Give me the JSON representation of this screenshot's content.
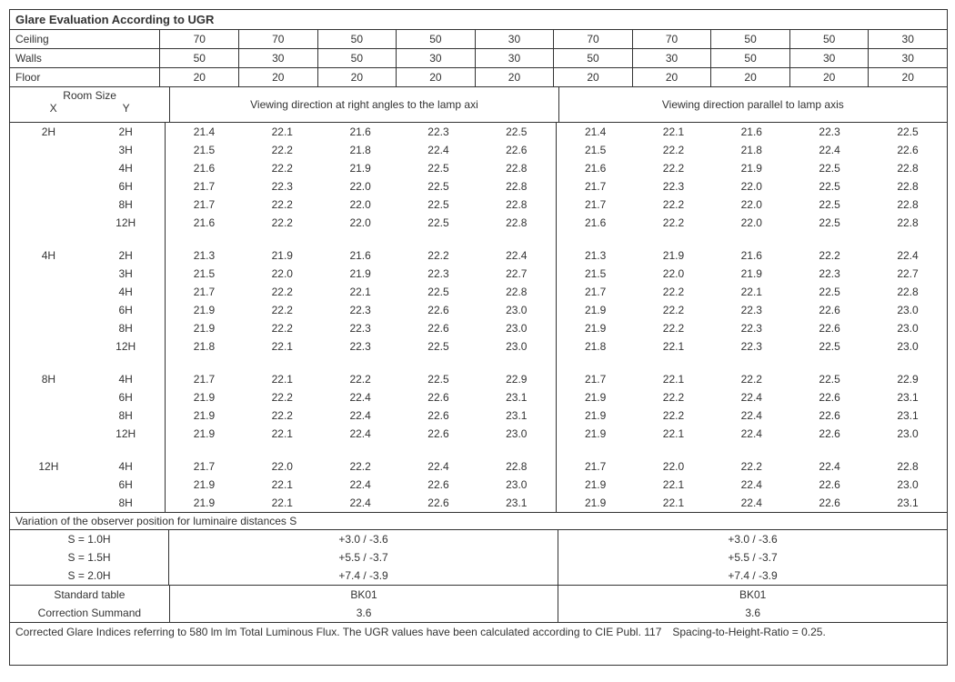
{
  "title": "Glare Evaluation According to UGR",
  "header_rows": [
    {
      "label": "Ceiling",
      "vals": [
        "70",
        "70",
        "50",
        "50",
        "30",
        "70",
        "70",
        "50",
        "50",
        "30"
      ]
    },
    {
      "label": "Walls",
      "vals": [
        "50",
        "30",
        "50",
        "30",
        "30",
        "50",
        "30",
        "50",
        "30",
        "30"
      ]
    },
    {
      "label": "Floor",
      "vals": [
        "20",
        "20",
        "20",
        "20",
        "20",
        "20",
        "20",
        "20",
        "20",
        "20"
      ]
    }
  ],
  "room_label": "Room Size",
  "x_label": "X",
  "y_label": "Y",
  "viewing_left": "Viewing direction at right angles to the lamp axi",
  "viewing_right": "Viewing direction parallel to lamp axis",
  "groups": [
    {
      "x": "2H",
      "rows": [
        {
          "y": "2H",
          "l": [
            "21.4",
            "22.1",
            "21.6",
            "22.3",
            "22.5"
          ],
          "r": [
            "21.4",
            "22.1",
            "21.6",
            "22.3",
            "22.5"
          ]
        },
        {
          "y": "3H",
          "l": [
            "21.5",
            "22.2",
            "21.8",
            "22.4",
            "22.6"
          ],
          "r": [
            "21.5",
            "22.2",
            "21.8",
            "22.4",
            "22.6"
          ]
        },
        {
          "y": "4H",
          "l": [
            "21.6",
            "22.2",
            "21.9",
            "22.5",
            "22.8"
          ],
          "r": [
            "21.6",
            "22.2",
            "21.9",
            "22.5",
            "22.8"
          ]
        },
        {
          "y": "6H",
          "l": [
            "21.7",
            "22.3",
            "22.0",
            "22.5",
            "22.8"
          ],
          "r": [
            "21.7",
            "22.3",
            "22.0",
            "22.5",
            "22.8"
          ]
        },
        {
          "y": "8H",
          "l": [
            "21.7",
            "22.2",
            "22.0",
            "22.5",
            "22.8"
          ],
          "r": [
            "21.7",
            "22.2",
            "22.0",
            "22.5",
            "22.8"
          ]
        },
        {
          "y": "12H",
          "l": [
            "21.6",
            "22.2",
            "22.0",
            "22.5",
            "22.8"
          ],
          "r": [
            "21.6",
            "22.2",
            "22.0",
            "22.5",
            "22.8"
          ]
        }
      ]
    },
    {
      "x": "4H",
      "rows": [
        {
          "y": "2H",
          "l": [
            "21.3",
            "21.9",
            "21.6",
            "22.2",
            "22.4"
          ],
          "r": [
            "21.3",
            "21.9",
            "21.6",
            "22.2",
            "22.4"
          ]
        },
        {
          "y": "3H",
          "l": [
            "21.5",
            "22.0",
            "21.9",
            "22.3",
            "22.7"
          ],
          "r": [
            "21.5",
            "22.0",
            "21.9",
            "22.3",
            "22.7"
          ]
        },
        {
          "y": "4H",
          "l": [
            "21.7",
            "22.2",
            "22.1",
            "22.5",
            "22.8"
          ],
          "r": [
            "21.7",
            "22.2",
            "22.1",
            "22.5",
            "22.8"
          ]
        },
        {
          "y": "6H",
          "l": [
            "21.9",
            "22.2",
            "22.3",
            "22.6",
            "23.0"
          ],
          "r": [
            "21.9",
            "22.2",
            "22.3",
            "22.6",
            "23.0"
          ]
        },
        {
          "y": "8H",
          "l": [
            "21.9",
            "22.2",
            "22.3",
            "22.6",
            "23.0"
          ],
          "r": [
            "21.9",
            "22.2",
            "22.3",
            "22.6",
            "23.0"
          ]
        },
        {
          "y": "12H",
          "l": [
            "21.8",
            "22.1",
            "22.3",
            "22.5",
            "23.0"
          ],
          "r": [
            "21.8",
            "22.1",
            "22.3",
            "22.5",
            "23.0"
          ]
        }
      ]
    },
    {
      "x": "8H",
      "rows": [
        {
          "y": "4H",
          "l": [
            "21.7",
            "22.1",
            "22.2",
            "22.5",
            "22.9"
          ],
          "r": [
            "21.7",
            "22.1",
            "22.2",
            "22.5",
            "22.9"
          ]
        },
        {
          "y": "6H",
          "l": [
            "21.9",
            "22.2",
            "22.4",
            "22.6",
            "23.1"
          ],
          "r": [
            "21.9",
            "22.2",
            "22.4",
            "22.6",
            "23.1"
          ]
        },
        {
          "y": "8H",
          "l": [
            "21.9",
            "22.2",
            "22.4",
            "22.6",
            "23.1"
          ],
          "r": [
            "21.9",
            "22.2",
            "22.4",
            "22.6",
            "23.1"
          ]
        },
        {
          "y": "12H",
          "l": [
            "21.9",
            "22.1",
            "22.4",
            "22.6",
            "23.0"
          ],
          "r": [
            "21.9",
            "22.1",
            "22.4",
            "22.6",
            "23.0"
          ]
        }
      ]
    },
    {
      "x": "12H",
      "rows": [
        {
          "y": "4H",
          "l": [
            "21.7",
            "22.0",
            "22.2",
            "22.4",
            "22.8"
          ],
          "r": [
            "21.7",
            "22.0",
            "22.2",
            "22.4",
            "22.8"
          ]
        },
        {
          "y": "6H",
          "l": [
            "21.9",
            "22.1",
            "22.4",
            "22.6",
            "23.0"
          ],
          "r": [
            "21.9",
            "22.1",
            "22.4",
            "22.6",
            "23.0"
          ]
        },
        {
          "y": "8H",
          "l": [
            "21.9",
            "22.1",
            "22.4",
            "22.6",
            "23.1"
          ],
          "r": [
            "21.9",
            "22.1",
            "22.4",
            "22.6",
            "23.1"
          ]
        }
      ]
    }
  ],
  "variation_title": "Variation of the observer position for luminaire distances S",
  "variation_rows": [
    {
      "label": "S = 1.0H",
      "l": "+3.0 / -3.6",
      "r": "+3.0 / -3.6"
    },
    {
      "label": "S = 1.5H",
      "l": "+5.5 / -3.7",
      "r": "+5.5 / -3.7"
    },
    {
      "label": "S = 2.0H",
      "l": "+7.4 / -3.9",
      "r": "+7.4 / -3.9"
    }
  ],
  "standard_rows": [
    {
      "label": "Standard table",
      "l": "BK01",
      "r": "BK01"
    },
    {
      "label": "Correction Summand",
      "l": "3.6",
      "r": "3.6"
    }
  ],
  "footnote": "Corrected Glare Indices referring to 580 lm lm Total Luminous Flux. The UGR values have been calculated according to CIE Publ. 117 Spacing-to-Height-Ratio = 0.25."
}
